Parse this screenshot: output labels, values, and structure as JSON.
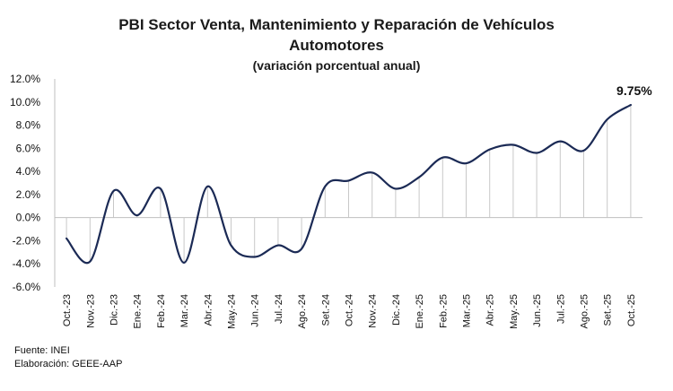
{
  "chart_data": {
    "type": "line",
    "title_line1": "PBI Sector Venta, Mantenimiento  y Reparación de Vehículos",
    "title_line2": "Automotores",
    "subtitle": "(variación  porcentual  anual)",
    "categories": [
      "Oct.-23",
      "Nov.-23",
      "Dic.-23",
      "Ene.-24",
      "Feb.-24",
      "Mar.-24",
      "Abr.-24",
      "May.-24",
      "Jun.-24",
      "Jul.-24",
      "Ago.-24",
      "Set.-24",
      "Oct.-24",
      "Nov.-24",
      "Dic.-24",
      "Ene.-25",
      "Feb.-25",
      "Mar.-25",
      "Abr.-25",
      "May.-25",
      "Jun.-25",
      "Jul.-25",
      "Ago.-25",
      "Set.-25",
      "Oct.-25"
    ],
    "values": [
      -1.8,
      -3.8,
      2.3,
      0.2,
      2.5,
      -3.9,
      2.7,
      -2.4,
      -3.4,
      -2.4,
      -2.7,
      2.7,
      3.2,
      3.9,
      2.5,
      3.5,
      5.2,
      4.7,
      5.9,
      6.3,
      5.6,
      6.6,
      5.8,
      8.5,
      9.75
    ],
    "ylim": [
      -6,
      12
    ],
    "yticks": [
      -6,
      -4,
      -2,
      0,
      2,
      4,
      6,
      8,
      10,
      12
    ],
    "ytick_labels": [
      "-6.0%",
      "-4.0%",
      "-2.0%",
      "0.0%",
      "2.0%",
      "4.0%",
      "6.0%",
      "8.0%",
      "10.0%",
      "12.0%"
    ],
    "last_label": "9.75%",
    "series_color": "#1b2a55",
    "drop_line_color": "#c8c8c8",
    "axis_color": "#bfbfbf",
    "xlabel": "",
    "ylabel": "",
    "grid": false,
    "legend": "none"
  },
  "footer": {
    "source": "Fuente: INEI",
    "elaboration": "Elaboración: GEEE-AAP"
  }
}
